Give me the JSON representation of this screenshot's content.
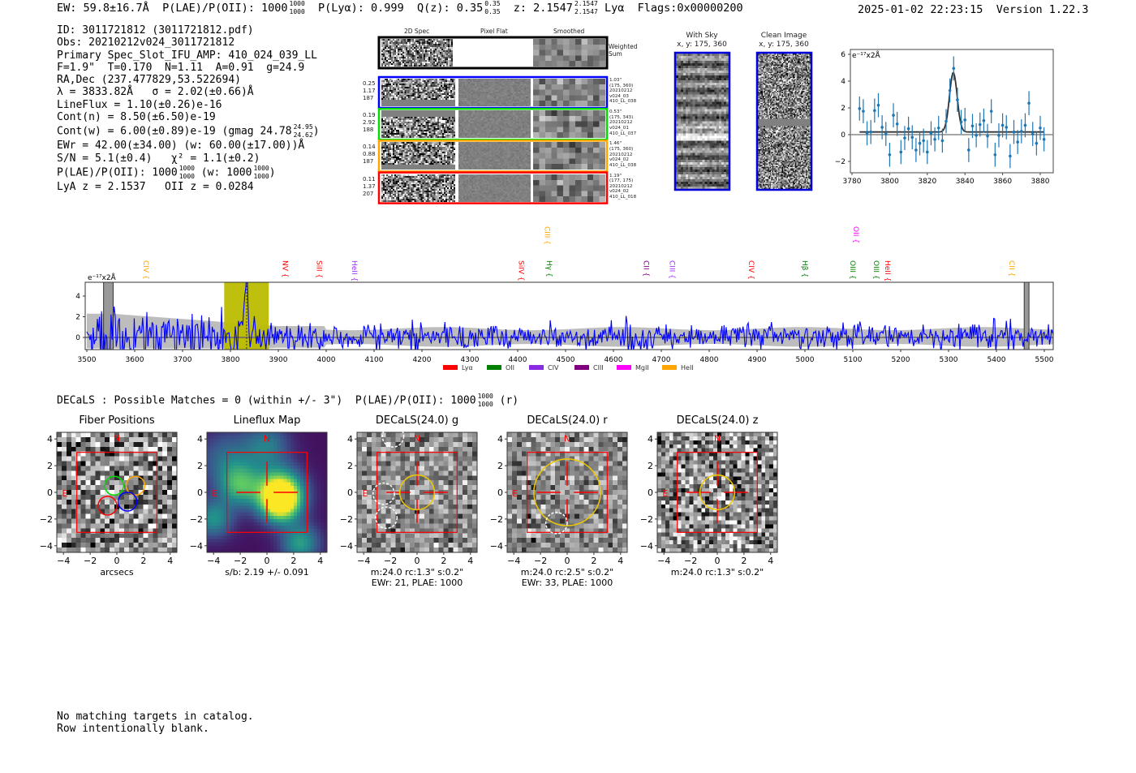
{
  "header": {
    "ew": "EW: 59.8±16.7Å",
    "plae": "P(LAE)/P(OII): 1000",
    "plae_hi": "1000",
    "plae_lo": "1000",
    "plya": "P(Lyα): 0.999",
    "qz": "Q(z): 0.35",
    "qz_hi": "0.35",
    "qz_lo": "0.35",
    "z": "z: 2.1547",
    "z_hi": "2.1547",
    "z_lo": "2.1547",
    "line": "Lyα",
    "flags": "Flags:0x00000200",
    "timestamp": "2025-01-02 22:23:15",
    "version": "Version 1.22.3"
  },
  "info": {
    "id": "ID: 3011721812 (3011721812.pdf)",
    "obs": "Obs: 20210212v024_3011721812",
    "primary": "Primary Spec_Slot_IFU_AMP: 410_024_039_LL",
    "fiber": "F=1.9\"  T=0.170  N=1.11  A=0.91  g=24.9",
    "radec": "RA,Dec (237.477829,53.522694)",
    "lambda": "λ = 3833.82Å   σ = 2.02(±0.66)Å",
    "lineflux": "LineFlux = 1.10(±0.26)e-16",
    "contn": "Cont(n) = 8.50(±6.50)e-19",
    "contw": "Cont(w) = 6.00(±0.89)e-19 (gmag 24.78",
    "contw_hi": "24.95",
    "contw_lo": "24.62",
    "contw_end": ")",
    "ewr": "EWr = 42.00(±34.00) (w: 60.00(±17.00))Å",
    "sn": "S/N = 5.1(±0.4)   χ² = 1.1(±0.2)",
    "plae": "P(LAE)/P(OII): 1000",
    "plae_hi": "1000",
    "plae_lo": "1000",
    "plae_w": " (w: 1000",
    "plae_w_hi": "1000",
    "plae_w_lo": "1000",
    "plae_w_end": ")",
    "z": "LyA z = 2.1537   OII z = 0.0284"
  },
  "spec2d": {
    "columns": [
      "2D Spec",
      "Pixel Flat",
      "Smoothed"
    ],
    "weighted_label": "Weighted Sum",
    "rows": [
      {
        "color": "#0000ff",
        "left": [
          "0.25",
          "1.17",
          "187"
        ],
        "right": [
          "1.03\"",
          "(175, 360)",
          "20210212",
          "v024_03",
          "410_LL_038"
        ]
      },
      {
        "color": "#00dd00",
        "left": [
          "0.19",
          "2.92",
          "188"
        ],
        "right": [
          "0.53\"",
          "(175, 343)",
          "20210212",
          "v024_01",
          "410_LL_037"
        ]
      },
      {
        "color": "#ffa500",
        "left": [
          "0.14",
          "0.88",
          "187"
        ],
        "right": [
          "1.46\"",
          "(175, 360)",
          "20210212",
          "v024_02",
          "410_LL_038"
        ]
      },
      {
        "color": "#ff0000",
        "left": [
          "0.11",
          "1.37",
          "207"
        ],
        "right": [
          "1.19\"",
          "(177, 175)",
          "20210212",
          "v024_02",
          "410_LL_018"
        ]
      }
    ]
  },
  "cutouts": {
    "with_sky": {
      "title": "With Sky",
      "coords": "x, y: 175, 360"
    },
    "clean": {
      "title": "Clean Image",
      "coords": "x, y: 175, 360"
    }
  },
  "chart_data": [
    {
      "type": "scatter",
      "title": "",
      "ylabel": "e⁻¹⁷x2Å",
      "xlim": [
        3778,
        3886
      ],
      "ylim": [
        -2.7,
        6.4
      ],
      "xticks": [
        "3780",
        "3800",
        "3820",
        "3840",
        "3860",
        "3880"
      ],
      "yticks": [
        "−2",
        "0",
        "2",
        "4",
        "6"
      ],
      "x": [
        3784,
        3786,
        3788,
        3790,
        3792,
        3794,
        3796,
        3798,
        3800,
        3802,
        3804,
        3806,
        3808,
        3810,
        3812,
        3814,
        3816,
        3818,
        3820,
        3822,
        3824,
        3826,
        3828,
        3830,
        3832,
        3834,
        3836,
        3838,
        3840,
        3842,
        3844,
        3846,
        3848,
        3850,
        3852,
        3854,
        3856,
        3858,
        3860,
        3862,
        3864,
        3866,
        3868,
        3870,
        3872,
        3874,
        3876,
        3878,
        3880,
        3882
      ],
      "y": [
        1.95,
        1.75,
        0.1,
        0.2,
        1.8,
        2.2,
        0.55,
        0.05,
        -1.5,
        1.45,
        0.8,
        -1.3,
        -0.25,
        0.45,
        -0.2,
        -1.15,
        -0.65,
        -0.45,
        -1.3,
        0.1,
        -0.35,
        0.5,
        -0.45,
        1.0,
        3.3,
        4.95,
        2.6,
        0.95,
        1.1,
        -1.15,
        0.65,
        -0.05,
        0.75,
        1.05,
        -0.1,
        1.75,
        -1.5,
        -0.05,
        0.7,
        0.55,
        -1.6,
        0.2,
        -0.55,
        0.25,
        0.7,
        2.35,
        0.05,
        -0.65,
        0.5,
        -0.35
      ],
      "yerr": 0.9,
      "fit": {
        "center": 3833.82,
        "sigma": 2.02,
        "amplitude": 4.45,
        "continuum": 0.2
      }
    },
    {
      "type": "line",
      "ylabel": "e⁻¹⁷x2Å",
      "xlim": [
        3495,
        5520
      ],
      "ylim": [
        -1.2,
        5.3
      ],
      "xticks": [
        "3500",
        "3600",
        "3700",
        "3800",
        "3900",
        "4000",
        "4100",
        "4200",
        "4300",
        "4400",
        "4500",
        "4600",
        "4700",
        "4800",
        "4900",
        "5000",
        "5100",
        "5200",
        "5300",
        "5400",
        "5500"
      ],
      "yticks": [
        "0",
        "2",
        "4"
      ],
      "peak_wavelength": 3833.82,
      "highlight_range": [
        3787,
        3880
      ],
      "masked_ranges": [
        [
          3535,
          3555
        ],
        [
          5458,
          5468
        ]
      ],
      "lines": [
        {
          "name": "CIV",
          "wl": 3624,
          "color": "#ffa500",
          "row": 1
        },
        {
          "name": "NV",
          "wl": 3914,
          "color": "#ff0000",
          "row": 1
        },
        {
          "name": "SiII",
          "wl": 3986,
          "color": "#ff0000",
          "row": 1
        },
        {
          "name": "HeII",
          "wl": 4059,
          "color": "#9b30ff",
          "row": 1
        },
        {
          "name": "SiIV",
          "wl": 4408,
          "color": "#ff0000",
          "row": 1
        },
        {
          "name": "CIII",
          "wl": 4462,
          "color": "#ffa500",
          "row": 0
        },
        {
          "name": "Hγ",
          "wl": 4466,
          "color": "#008000",
          "row": 1
        },
        {
          "name": "CII",
          "wl": 4669,
          "color": "#800080",
          "row": 1
        },
        {
          "name": "CIII",
          "wl": 4723,
          "color": "#9b30ff",
          "row": 1
        },
        {
          "name": "CIV",
          "wl": 4888,
          "color": "#ff0000",
          "row": 1
        },
        {
          "name": "Hβ",
          "wl": 5000,
          "color": "#008000",
          "row": 1
        },
        {
          "name": "OII",
          "wl": 5107,
          "color": "#ff00ff",
          "row": 0
        },
        {
          "name": "OIII",
          "wl": 5100,
          "color": "#008000",
          "row": 1
        },
        {
          "name": "OIII",
          "wl": 5149,
          "color": "#008000",
          "row": 1
        },
        {
          "name": "HeII",
          "wl": 5173,
          "color": "#ff0000",
          "row": 1
        },
        {
          "name": "CII",
          "wl": 5432,
          "color": "#ffa500",
          "row": 1
        }
      ],
      "legend": [
        {
          "label": "Lyα",
          "color": "#ff0000"
        },
        {
          "label": "OII",
          "color": "#008000"
        },
        {
          "label": "CIV",
          "color": "#8a2be2"
        },
        {
          "label": "CIII",
          "color": "#800080"
        },
        {
          "label": "MgII",
          "color": "#ff00ff"
        },
        {
          "label": "HeII",
          "color": "#ffa500"
        }
      ]
    }
  ],
  "decals": {
    "summary": "DECaLS : Possible Matches = 0 (within +/- 3\")  P(LAE)/P(OII): 1000",
    "summary_hi": "1000",
    "summary_lo": "1000",
    "summary_end": " (r)",
    "ticks": [
      "−4",
      "−2",
      "0",
      "2",
      "4"
    ],
    "north": "N",
    "east": "E",
    "panels": [
      {
        "title": "Fiber Positions",
        "caption": [
          "arcsecs"
        ]
      },
      {
        "title": "Lineflux Map",
        "caption": [
          "s/b: 2.19 +/- 0.091"
        ]
      },
      {
        "title": "DECaLS(24.0) g",
        "caption": [
          "m:24.0 rc:1.3\"  s:0.2\"",
          "EWr: 21, PLAE: 1000"
        ]
      },
      {
        "title": "DECaLS(24.0) r",
        "caption": [
          "m:24.0 rc:2.5\"  s:0.2\"",
          "EWr: 33, PLAE: 1000"
        ]
      },
      {
        "title": "DECaLS(24.0) z",
        "caption": [
          "m:24.0 rc:1.3\"  s:0.2\""
        ]
      }
    ]
  },
  "footer": [
    "No matching targets in catalog.",
    "Row intentionally blank."
  ]
}
